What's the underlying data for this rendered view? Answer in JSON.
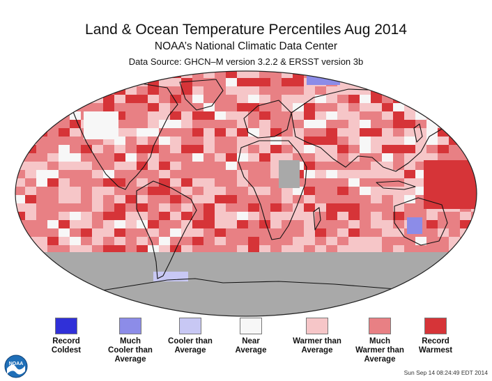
{
  "title": "Land & Ocean Temperature Percentiles Aug 2014",
  "subtitle": "NOAA’s National Climatic Data Center",
  "source": "Data Source: GHCN–M version 3.2.2 & ERSST version 3b",
  "timestamp": "Sun Sep 14 08:24:49 EDT 2014",
  "logo_text": "NOAA",
  "colors": {
    "record_coldest": "#3030d8",
    "much_cooler": "#8c8ce8",
    "cooler": "#c8c8f4",
    "near": "#f7f7f7",
    "warmer": "#f6c6c8",
    "much_warmer": "#e88084",
    "record_warmest": "#d63438",
    "no_data": "#a9a9a9",
    "coast": "#111111"
  },
  "legend": [
    {
      "label": "Record\nColdest",
      "color": "#3030d8"
    },
    {
      "label": "Much\nCooler than\nAverage",
      "color": "#8c8ce8"
    },
    {
      "label": "Cooler than\nAverage",
      "color": "#c8c8f4"
    },
    {
      "label": "Near\nAverage",
      "color": "#f7f7f7"
    },
    {
      "label": "Warmer than\nAverage",
      "color": "#f6c6c8"
    },
    {
      "label": "Much\nWarmer than\nAverage",
      "color": "#e88084"
    },
    {
      "label": "Record\nWarmest",
      "color": "#d63438"
    }
  ]
}
